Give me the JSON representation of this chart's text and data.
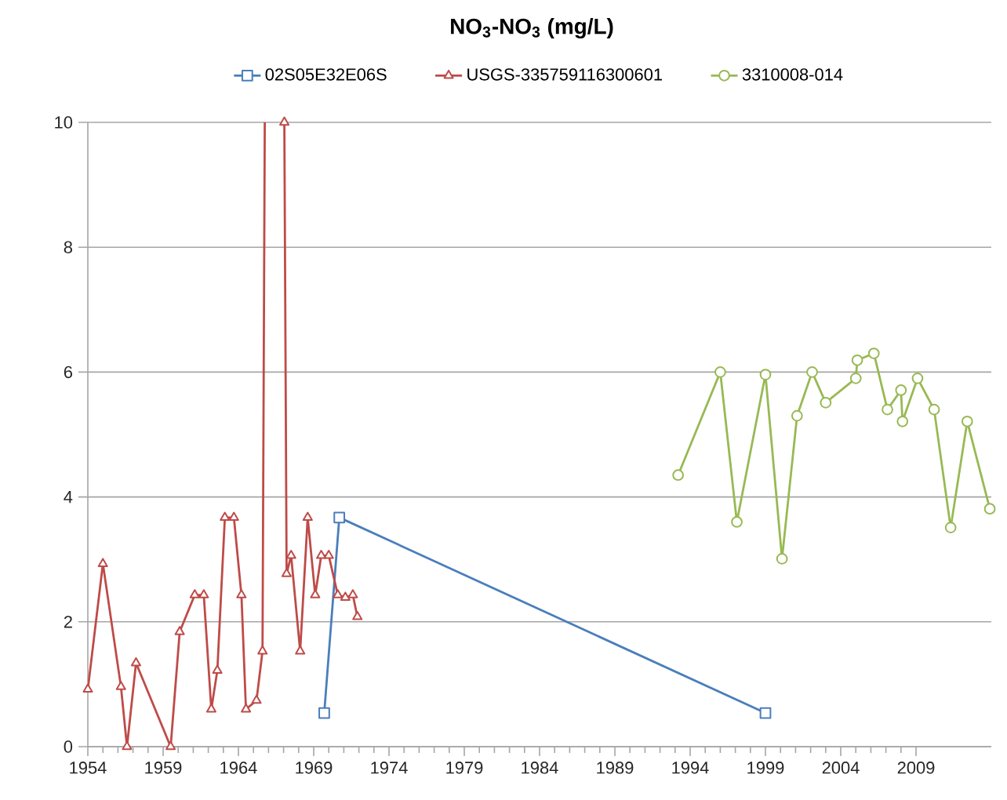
{
  "chart_data": {
    "type": "line",
    "title": "NO$_{3}$-NO$_{3}$ (mg/L)",
    "xlim": [
      1954,
      2014
    ],
    "xticks": [
      1954,
      1959,
      1964,
      1969,
      1974,
      1979,
      1984,
      1989,
      1994,
      1999,
      2004,
      2009
    ],
    "ylim": [
      0,
      10
    ],
    "yticks": [
      0,
      2,
      4,
      6,
      8,
      10
    ],
    "grid": "y",
    "legend": "top",
    "series": [
      {
        "name": "02S05E32E06S",
        "color": "#4a7ebb",
        "marker": "square",
        "x": [
          1969.7,
          1970.7,
          1999.0
        ],
        "values": [
          0.54,
          3.67,
          0.54
        ]
      },
      {
        "name": "USGS-335759116300601",
        "color": "#be4b48",
        "marker": "triangle",
        "x": [
          1954.0,
          1955.0,
          1956.2,
          1956.6,
          1957.2,
          1959.5,
          1960.1,
          1961.1,
          1961.7,
          1962.2,
          1962.6,
          1963.1,
          1963.7,
          1964.2,
          1964.5,
          1965.2,
          1965.6,
          1965.75,
          1966.4,
          1967.05,
          1967.2,
          1967.5,
          1968.1,
          1968.6,
          1969.1,
          1969.5,
          1970.0,
          1970.6,
          1971.1,
          1971.6,
          1971.9
        ],
        "values": [
          0.92,
          2.93,
          0.96,
          0,
          1.34,
          0,
          1.84,
          2.43,
          2.43,
          0.6,
          1.22,
          3.67,
          3.67,
          2.43,
          0.6,
          0.74,
          1.53,
          10,
          null,
          10,
          2.77,
          3.06,
          1.53,
          3.67,
          2.43,
          3.06,
          3.06,
          2.43,
          2.39,
          2.43,
          2.08
        ]
      },
      {
        "name": "3310008-014",
        "color": "#98b954",
        "marker": "circle",
        "x": [
          1993.2,
          1996.0,
          1997.1,
          1999.0,
          2000.1,
          2001.1,
          2002.1,
          2003.0,
          2005.0,
          2005.1,
          2006.2,
          2007.1,
          2008.0,
          2008.1,
          2009.1,
          2010.2,
          2011.3,
          2012.4,
          2013.9
        ],
        "values": [
          4.35,
          6.0,
          3.6,
          5.96,
          3.01,
          5.3,
          6.0,
          5.51,
          5.9,
          6.19,
          6.3,
          5.4,
          5.71,
          5.21,
          5.9,
          5.4,
          3.51,
          5.21,
          3.81
        ]
      }
    ]
  }
}
